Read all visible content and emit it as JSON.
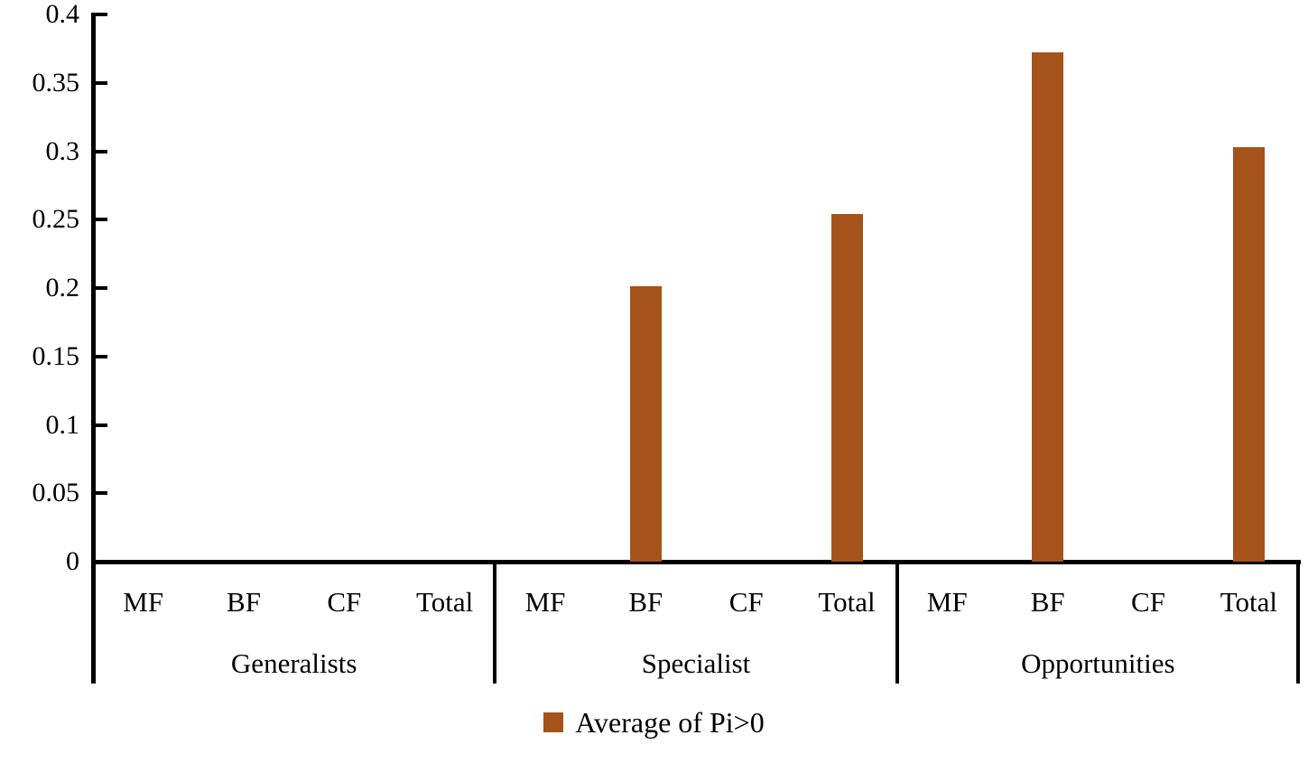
{
  "figure": {
    "background": "#FFFFFF"
  },
  "chart_data": {
    "type": "bar",
    "title": "",
    "xlabel": "",
    "ylabel": "",
    "ylim": [
      0,
      0.4
    ],
    "ytick_step": 0.05,
    "ytick_labels": [
      "0",
      "0.05",
      "0.1",
      "0.15",
      "0.2",
      "0.25",
      "0.3",
      "0.35",
      "0.4"
    ],
    "grid": false,
    "bar_color": "#A5521B",
    "axis_color": "#000000",
    "groups": [
      {
        "label": "Generalists",
        "categories": [
          "MF",
          "BF",
          "CF",
          "Total"
        ],
        "values": [
          0,
          0,
          0,
          0
        ]
      },
      {
        "label": "Specialist",
        "categories": [
          "MF",
          "BF",
          "CF",
          "Total"
        ],
        "values": [
          0,
          0.201,
          0,
          0.254
        ]
      },
      {
        "label": "Opportunities",
        "categories": [
          "MF",
          "BF",
          "CF",
          "Total"
        ],
        "values": [
          0,
          0.372,
          0,
          0.303
        ]
      }
    ],
    "series": [
      {
        "name": "Average of Pi>0"
      }
    ],
    "legend": {
      "label": "Average of Pi>0",
      "position": "bottom",
      "swatch_color": "#A5521B"
    }
  }
}
